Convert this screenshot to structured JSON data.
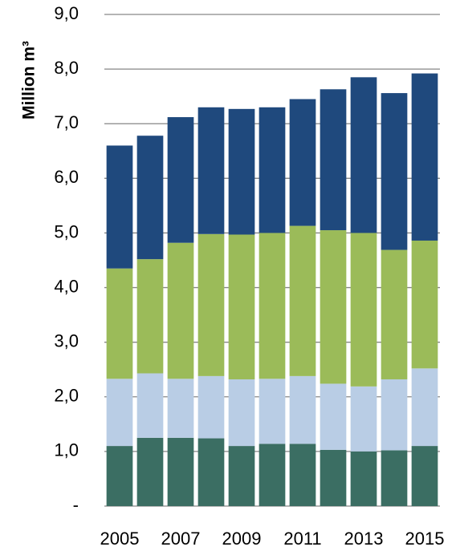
{
  "chart_data": {
    "type": "stacked_bar",
    "y_label": "Million m³",
    "categories": [
      "2005",
      null,
      "2007",
      null,
      "2009",
      null,
      "2011",
      null,
      "2013",
      null,
      "2015"
    ],
    "series": [
      {
        "color": "#3b6e63",
        "values": [
          1.1,
          1.25,
          1.25,
          1.24,
          1.1,
          1.14,
          1.14,
          1.03,
          1.0,
          1.02,
          1.1
        ]
      },
      {
        "color": "#b9cde5",
        "values": [
          1.23,
          1.18,
          1.08,
          1.14,
          1.22,
          1.19,
          1.24,
          1.21,
          1.19,
          1.3,
          1.42
        ]
      },
      {
        "color": "#9bbb59",
        "values": [
          2.02,
          2.09,
          2.49,
          2.6,
          2.65,
          2.67,
          2.75,
          2.81,
          2.81,
          2.37,
          2.34
        ]
      },
      {
        "color": "#1f497d",
        "values": [
          2.25,
          2.26,
          2.3,
          2.32,
          2.3,
          2.3,
          2.32,
          2.58,
          2.85,
          2.87,
          3.06
        ]
      }
    ],
    "ylim": [
      0,
      9
    ],
    "yticks": [
      {
        "value": 0,
        "label": "-"
      },
      {
        "value": 1,
        "label": "1,0"
      },
      {
        "value": 2,
        "label": "2,0"
      },
      {
        "value": 3,
        "label": "3,0"
      },
      {
        "value": 4,
        "label": "4,0"
      },
      {
        "value": 5,
        "label": "5,0"
      },
      {
        "value": 6,
        "label": "6,0"
      },
      {
        "value": 7,
        "label": "7,0"
      },
      {
        "value": 8,
        "label": "8,0"
      },
      {
        "value": 9,
        "label": "9,0"
      }
    ],
    "grid": true
  }
}
